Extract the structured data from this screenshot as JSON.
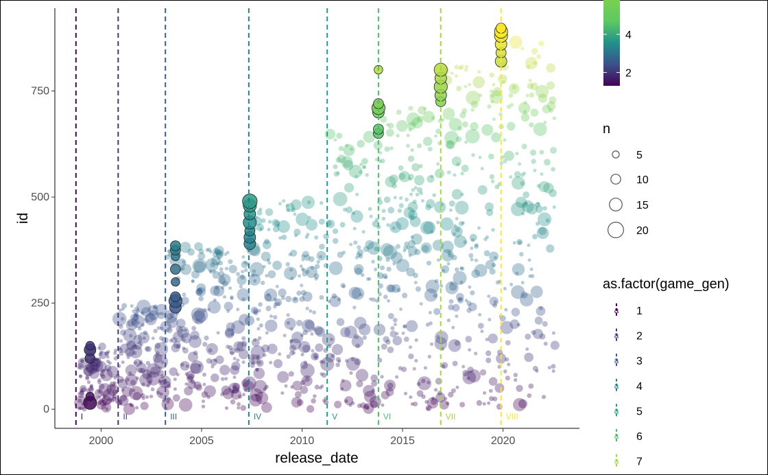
{
  "chart_data": {
    "type": "scatter",
    "title": "",
    "xlabel": "release_date",
    "ylabel": "id",
    "xlim": [
      1997.7,
      2023.8
    ],
    "ylim": [
      -45,
      945
    ],
    "x_ticks": [
      2000,
      2005,
      2010,
      2015,
      2020
    ],
    "y_ticks": [
      0,
      250,
      500,
      750
    ],
    "grid": false,
    "generations": [
      {
        "gen": "1",
        "numeral": "I",
        "date": 1998.75,
        "color": "#440154"
      },
      {
        "gen": "2",
        "numeral": "II",
        "date": 2000.85,
        "color": "#46337E"
      },
      {
        "gen": "3",
        "numeral": "III",
        "date": 2003.2,
        "color": "#365C8D"
      },
      {
        "gen": "4",
        "numeral": "IV",
        "date": 2007.35,
        "color": "#277F8E"
      },
      {
        "gen": "5",
        "numeral": "V",
        "date": 2011.25,
        "color": "#1FA187"
      },
      {
        "gen": "6",
        "numeral": "VI",
        "date": 2013.8,
        "color": "#4AC16D"
      },
      {
        "gen": "7",
        "numeral": "VII",
        "date": 2016.9,
        "color": "#A0DA39"
      },
      {
        "gen": "8",
        "numeral": "VIII",
        "date": 2019.9,
        "color": "#FDE725"
      }
    ],
    "highlight_clusters": [
      {
        "x": 1999.45,
        "ids": [
          15,
          30,
          120,
          140,
          150
        ],
        "n": [
          12,
          6,
          8,
          10,
          6
        ]
      },
      {
        "x": 2003.7,
        "ids": [
          240,
          255,
          265,
          300,
          330,
          360,
          375,
          385
        ],
        "n": [
          10,
          12,
          8,
          6,
          8,
          6,
          8,
          8
        ]
      },
      {
        "x": 2007.4,
        "ids": [
          390,
          405,
          420,
          440,
          460,
          480,
          490
        ],
        "n": [
          10,
          10,
          8,
          12,
          10,
          12,
          14
        ]
      },
      {
        "x": 2013.8,
        "ids": [
          650,
          660,
          700,
          710,
          720,
          800
        ],
        "n": [
          8,
          8,
          10,
          12,
          8,
          6
        ]
      },
      {
        "x": 2016.9,
        "ids": [
          725,
          740,
          760,
          780,
          800
        ],
        "n": [
          8,
          10,
          12,
          10,
          12
        ]
      },
      {
        "x": 2019.9,
        "ids": [
          820,
          840,
          860,
          880,
          890,
          898
        ],
        "n": [
          10,
          8,
          10,
          12,
          12,
          8
        ]
      }
    ],
    "legends": {
      "color_bar": {
        "ticks": [
          2,
          4
        ],
        "range": [
          1.3,
          5.8
        ]
      },
      "size": {
        "title": "n",
        "values": [
          5,
          10,
          15,
          20
        ]
      },
      "game_gen": {
        "title": "as.factor(game_gen)",
        "entries": [
          "1",
          "2",
          "3",
          "4",
          "5",
          "6",
          "7"
        ],
        "key_glyph": "a"
      }
    }
  }
}
